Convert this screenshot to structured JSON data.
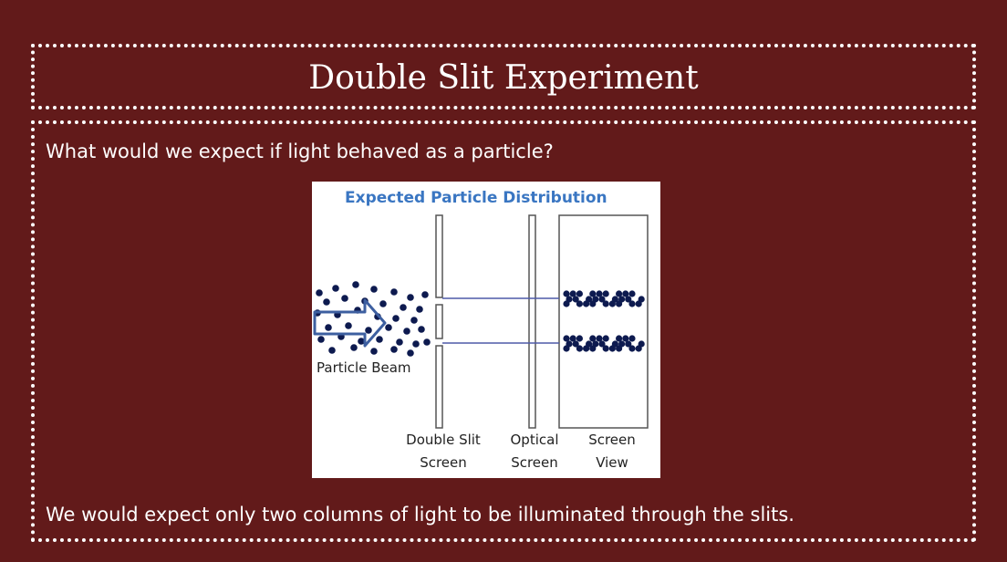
{
  "slide": {
    "title": "Double Slit Experiment",
    "question": "What would we expect if light behaved as a particle?",
    "answer": "We would expect only two columns of light to be illuminated through the slits."
  },
  "diagram": {
    "heading": "Expected Particle Distribution",
    "beam_label": "Particle Beam",
    "label_double_slit_1": "Double Slit",
    "label_double_slit_2": "Screen",
    "label_optical_1": "Optical",
    "label_optical_2": "Screen",
    "label_view_1": "Screen",
    "label_view_2": "View",
    "colors": {
      "heading": "#3a76c2",
      "dots": "#0d1a4f",
      "beam_lines": "#4f5aa8",
      "arrow": "#3d5fa0"
    }
  }
}
